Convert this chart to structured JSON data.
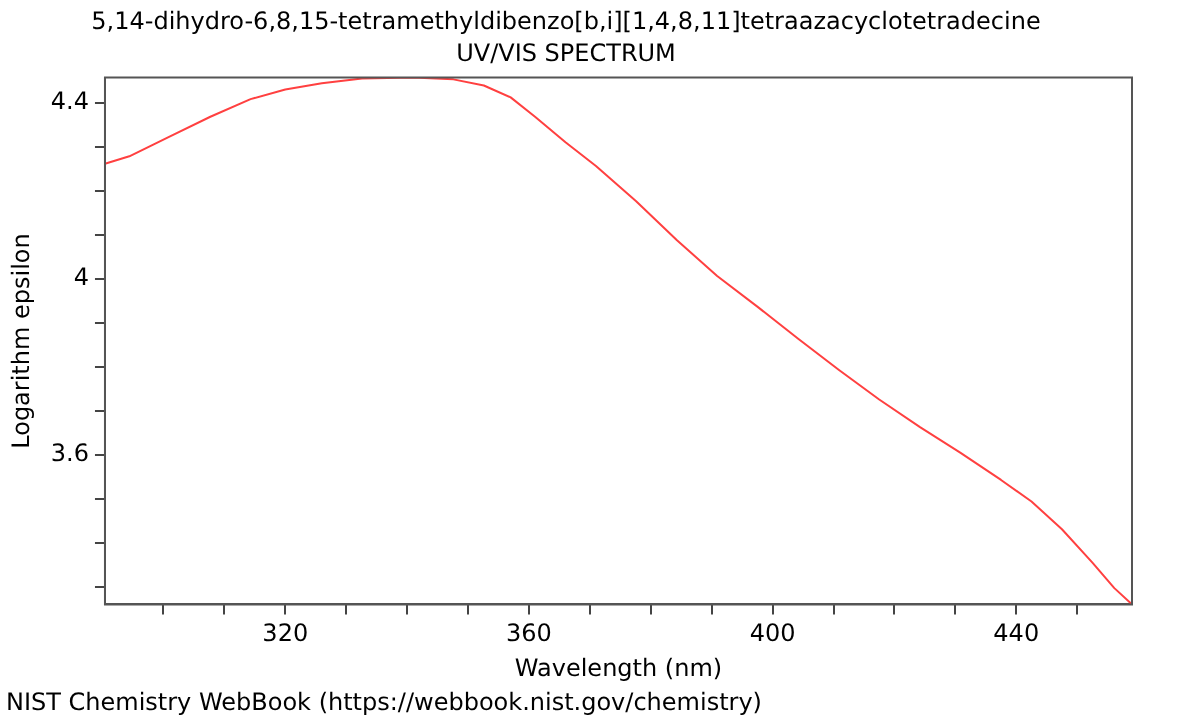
{
  "chart_data": {
    "type": "line",
    "title": "5,14-dihydro-6,8,15-tetramethyldibenzo[b,i][1,4,8,11]tetraazacyclotetradecine",
    "subtitle": "UV/VIS SPECTRUM",
    "xlabel": "Wavelength (nm)",
    "ylabel": "Logarithm epsilon",
    "annotations": [
      "NIST Chemistry WebBook (https://webbook.nist.gov/chemistry)"
    ],
    "xlim": [
      290.4,
      459
    ],
    "ylim": [
      3.26,
      4.458
    ],
    "xticks": [
      {
        "value": 300,
        "label": null
      },
      {
        "value": 310,
        "label": null
      },
      320,
      {
        "value": 330,
        "label": null
      },
      {
        "value": 340,
        "label": null
      },
      {
        "value": 350,
        "label": null
      },
      360,
      {
        "value": 370,
        "label": null
      },
      {
        "value": 380,
        "label": null
      },
      {
        "value": 390,
        "label": null
      },
      400,
      {
        "value": 410,
        "label": null
      },
      {
        "value": 420,
        "label": null
      },
      {
        "value": 430,
        "label": null
      },
      440,
      {
        "value": 450,
        "label": null
      }
    ],
    "yticks": [
      {
        "value": 3.3,
        "label": null
      },
      {
        "value": 3.4,
        "label": null
      },
      {
        "value": 3.5,
        "label": null
      },
      3.6,
      {
        "value": 3.7,
        "label": null
      },
      {
        "value": 3.8,
        "label": null
      },
      {
        "value": 3.9,
        "label": null
      },
      4,
      {
        "value": 4.1,
        "label": null
      },
      {
        "value": 4.2,
        "label": null
      },
      {
        "value": 4.3,
        "label": null
      },
      4.4
    ],
    "grid": false,
    "legend": false,
    "marker": "none",
    "line_style": "solid",
    "series": [
      {
        "color": "#ff4040",
        "x": [
          290.4,
          294.4,
          301,
          307.7,
          314.3,
          320,
          326,
          332.6,
          341,
          347.6,
          352.6,
          357,
          361,
          366,
          371,
          377.6,
          384.3,
          390.9,
          397.6,
          404.2,
          410.9,
          417.5,
          424.2,
          430.8,
          437.5,
          442.5,
          447.5,
          452.5,
          456.1,
          459
        ],
        "values": [
          4.262,
          4.279,
          4.324,
          4.369,
          4.409,
          4.431,
          4.445,
          4.456,
          4.458,
          4.454,
          4.44,
          4.413,
          4.369,
          4.311,
          4.257,
          4.177,
          4.088,
          4.007,
          3.936,
          3.864,
          3.793,
          3.726,
          3.663,
          3.605,
          3.543,
          3.494,
          3.431,
          3.355,
          3.297,
          3.26
        ]
      }
    ]
  }
}
